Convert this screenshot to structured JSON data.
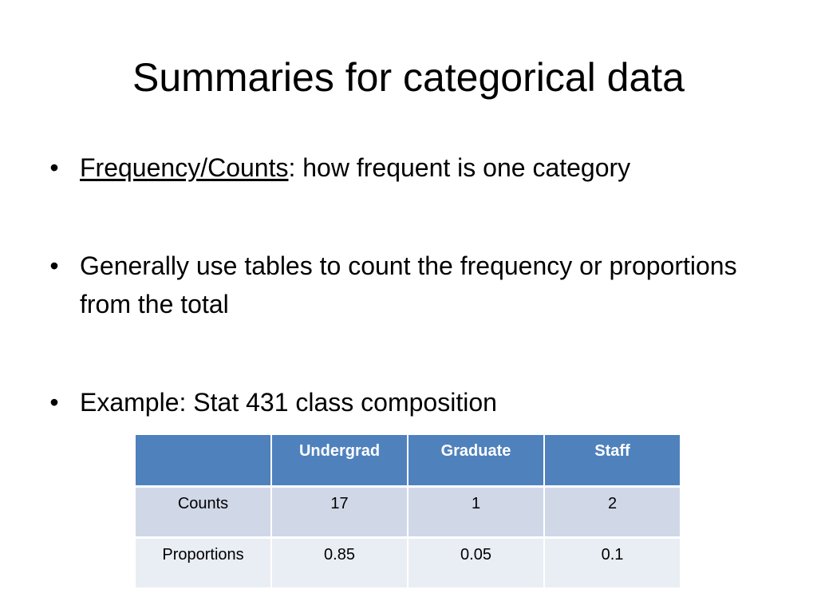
{
  "slide": {
    "title": "Summaries for categorical data",
    "bullets": [
      {
        "term": "Frequency/Counts",
        "text": ": how frequent is one category"
      },
      {
        "text": "Generally use tables to count the frequency or proportions from the total"
      },
      {
        "text": "Example: Stat 431 class composition"
      }
    ],
    "bullet_glyph": "•"
  },
  "table": {
    "headers": [
      "",
      "Undergrad",
      "Graduate",
      "Staff"
    ],
    "rows": [
      [
        "Counts",
        "17",
        "1",
        "2"
      ],
      [
        "Proportions",
        "0.85",
        "0.05",
        "0.1"
      ]
    ]
  },
  "colors": {
    "header_bg": "#4f81bd",
    "row1_bg": "#d0d8e8",
    "row2_bg": "#e9edf4"
  }
}
